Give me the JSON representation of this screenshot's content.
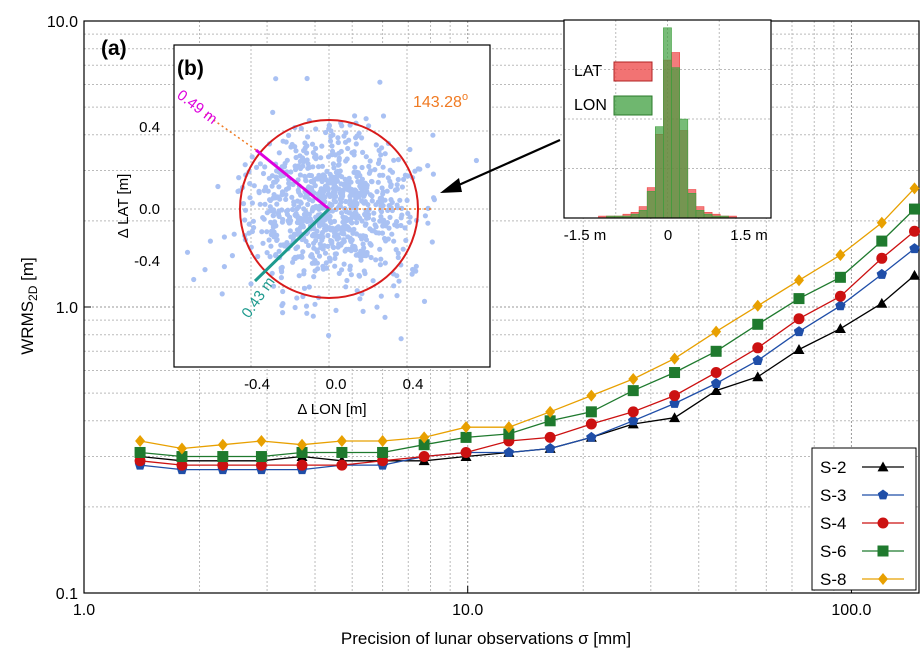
{
  "chart_data": [
    {
      "type": "line",
      "panel_label": "(a)",
      "xlabel": "Precision of lunar observations σ [mm]",
      "ylabel_main": "WRMS",
      "ylabel_sub": "2D",
      "ylabel_unit": " [m]",
      "xscale": "log",
      "yscale": "log",
      "xlim": [
        1.0,
        150
      ],
      "ylim": [
        0.1,
        10.0
      ],
      "xtick_values": [
        1,
        10,
        100
      ],
      "xtick_labels": [
        "1.0",
        "10.0",
        "100.0"
      ],
      "ytick_values": [
        0.1,
        1,
        10
      ],
      "ytick_labels": [
        "0.1",
        "1.0",
        "10.0"
      ],
      "grid": true,
      "legend_position": "bottom-right",
      "x": [
        1.4,
        1.8,
        2.3,
        2.9,
        3.7,
        4.7,
        6.0,
        7.7,
        9.9,
        12.8,
        16.4,
        21.0,
        27.0,
        34.6,
        44.4,
        57.0,
        73.0,
        93.6,
        120,
        146
      ],
      "series": [
        {
          "name": "S-2",
          "color": "#000000",
          "marker": "triangle",
          "values": [
            0.3,
            0.29,
            0.29,
            0.29,
            0.3,
            0.29,
            0.29,
            0.29,
            0.3,
            0.31,
            0.32,
            0.35,
            0.39,
            0.41,
            0.51,
            0.57,
            0.71,
            0.84,
            1.03,
            1.29
          ]
        },
        {
          "name": "S-3",
          "color": "#1f4ea8",
          "marker": "pentagon",
          "values": [
            0.28,
            0.27,
            0.27,
            0.27,
            0.27,
            0.28,
            0.28,
            0.3,
            0.31,
            0.31,
            0.32,
            0.35,
            0.4,
            0.46,
            0.54,
            0.65,
            0.82,
            1.01,
            1.3,
            1.6
          ]
        },
        {
          "name": "S-4",
          "color": "#cc1111",
          "marker": "circle",
          "values": [
            0.29,
            0.28,
            0.28,
            0.28,
            0.28,
            0.28,
            0.29,
            0.3,
            0.31,
            0.34,
            0.35,
            0.39,
            0.43,
            0.49,
            0.59,
            0.72,
            0.91,
            1.09,
            1.48,
            1.84
          ]
        },
        {
          "name": "S-6",
          "color": "#1f7a2e",
          "marker": "square",
          "values": [
            0.31,
            0.3,
            0.3,
            0.3,
            0.31,
            0.31,
            0.31,
            0.33,
            0.35,
            0.36,
            0.4,
            0.43,
            0.51,
            0.59,
            0.7,
            0.87,
            1.07,
            1.27,
            1.7,
            2.2
          ]
        },
        {
          "name": "S-8",
          "color": "#e8a000",
          "marker": "diamond",
          "values": [
            0.34,
            0.32,
            0.33,
            0.34,
            0.33,
            0.34,
            0.34,
            0.35,
            0.38,
            0.38,
            0.43,
            0.49,
            0.56,
            0.66,
            0.82,
            1.01,
            1.24,
            1.52,
            1.97,
            2.6
          ]
        }
      ]
    },
    {
      "type": "scatter",
      "panel_label": "(b)",
      "xlabel": "Δ LON [m]",
      "ylabel": "Δ LAT [m]",
      "xlim": [
        -0.7,
        0.7
      ],
      "ylim": [
        -0.7,
        0.7
      ],
      "xtick_labels": [
        "-0.4",
        "0.0",
        "0.4"
      ],
      "ytick_labels": [
        "0.4",
        "0.0",
        "-0.4"
      ],
      "point_color": "#a9c1f3",
      "circle_radius_m": 0.45,
      "circle_color": "#d81b1b",
      "major_axis_label": "0.49 m",
      "major_axis_color": "#dd00dd",
      "major_axis_direction_deg": 143.28,
      "minor_axis_label": "0.43 m",
      "minor_axis_color": "#1d9a8e",
      "angle_label": "143.28",
      "angle_label_sup": "o",
      "angle_color": "#f07a22"
    },
    {
      "type": "histogram",
      "xlim_m": [
        -1.5,
        1.5
      ],
      "xtick_labels": [
        "-1.5 m",
        "0",
        "1.5 m"
      ],
      "series": [
        {
          "name": "LAT",
          "color": "#ee4444",
          "counts": [
            1,
            1,
            1,
            2,
            3,
            6,
            16,
            44,
            83,
            87,
            46,
            15,
            6,
            3,
            2,
            1,
            1
          ]
        },
        {
          "name": "LON",
          "color": "#3f9f3f",
          "counts": [
            0,
            1,
            1,
            1,
            2,
            4,
            14,
            48,
            100,
            79,
            52,
            13,
            4,
            2,
            1,
            1,
            0
          ]
        }
      ]
    }
  ]
}
